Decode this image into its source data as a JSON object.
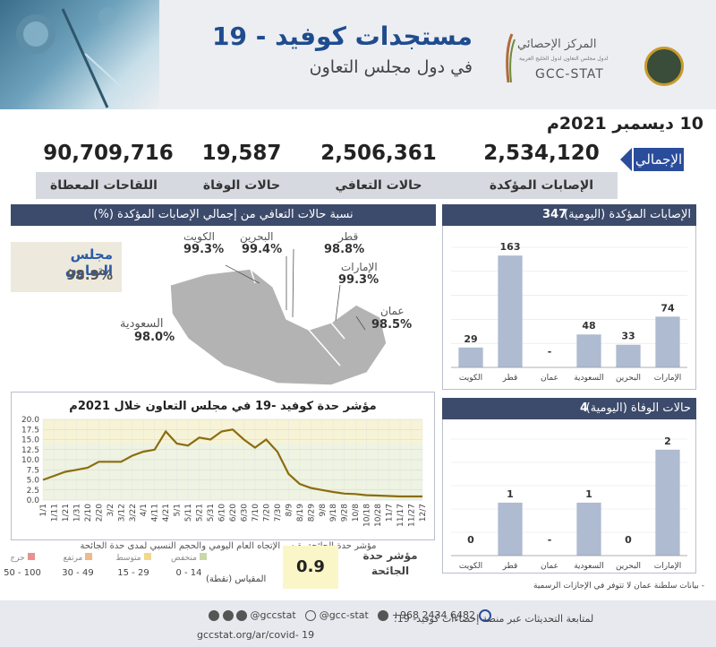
{
  "header": {
    "title": "مستجدات كوفيد - 19",
    "subtitle": "في دول مجلس التعاون",
    "org_ar": "المركز الإحصائي",
    "org_sub": "لدول مجلس التعاون لدول الخليج العربية",
    "org_en": "GCC-STAT"
  },
  "date": "10 ديسمبر 2021م",
  "totals": {
    "label": "الإجمالي",
    "items": [
      {
        "label": "الإصابات المؤكدة",
        "value": "2,534,120"
      },
      {
        "label": "حالات التعافي",
        "value": "2,506,361"
      },
      {
        "label": "حالات الوفاة",
        "value": "19,587"
      },
      {
        "label": "اللقاحات المعطاة",
        "value": "90,709,716"
      }
    ]
  },
  "recovery_map": {
    "title": "نسبة حالات التعافي من إجمالي الإصابات المؤكدة (%)",
    "gcc_label": "مجلس التعاون",
    "gcc_value": "98.9%",
    "countries": [
      {
        "name": "الكويت",
        "value": "99.3%"
      },
      {
        "name": "البحرين",
        "value": "99.4%"
      },
      {
        "name": "قطر",
        "value": "98.8%"
      },
      {
        "name": "الإمارات",
        "value": "99.3%"
      },
      {
        "name": "عمان",
        "value": "98.5%"
      },
      {
        "name": "السعودية",
        "value": "98.0%"
      }
    ]
  },
  "severity": {
    "title": "مؤشر حدة كوفيد -19 في مجلس التعاون خلال 2021م",
    "caption": "مؤشر حدة الجائحة يقيس الإتجاه العام اليومي والحجم النسبي لمدى حدة الجائحة",
    "index_label": "مؤشر حدة الجائحة",
    "index_value": "0.9",
    "scale_label": "المقياس (نقطة)",
    "scale": [
      {
        "label": "منخفض",
        "range": "0 - 14",
        "color": "#c7d9a6"
      },
      {
        "label": "متوسط",
        "range": "15 - 29",
        "color": "#f2d98a"
      },
      {
        "label": "مرتفع",
        "range": "30 - 49",
        "color": "#f0b98a"
      },
      {
        "label": "حرج",
        "range": "50 - 100",
        "color": "#e8928f"
      }
    ]
  },
  "daily_cases": {
    "title": "الإصابات المؤكدة (اليومية)",
    "total": "347"
  },
  "daily_deaths": {
    "title": "حالات الوفاة (اليومية)",
    "total": "4"
  },
  "note": "- بيانات سلطنة عمان لا تتوفر في الإجازات الرسمية",
  "footer": {
    "line1": "لمتابعة التحديثات عبر منصة إحصاءات كوفيد- 19:",
    "url": "gccstat.org/ar/covid- 19",
    "phone": "+968 2434 6482",
    "handle1": "@gcc-stat",
    "handle2": "@gccstat"
  },
  "chart_data": [
    {
      "type": "line",
      "title": "مؤشر حدة كوفيد -19 في مجلس التعاون خلال 2021م",
      "ylim": [
        0,
        20
      ],
      "yticks": [
        0.0,
        2.5,
        5.0,
        7.5,
        10.0,
        12.5,
        15.0,
        17.5,
        20.0
      ],
      "grid": true,
      "x": [
        "1/1",
        "1/11",
        "1/21",
        "1/31",
        "2/10",
        "2/20",
        "3/2",
        "3/12",
        "3/22",
        "4/1",
        "4/11",
        "4/21",
        "5/1",
        "5/11",
        "5/21",
        "5/31",
        "6/10",
        "6/20",
        "6/30",
        "7/10",
        "7/20",
        "7/30",
        "8/9",
        "8/19",
        "8/29",
        "9/8",
        "9/18",
        "9/28",
        "10/8",
        "10/18",
        "10/28",
        "11/7",
        "11/17",
        "11/27",
        "12/7"
      ],
      "series": [
        {
          "values": [
            5.0,
            6.0,
            7.0,
            7.5,
            8.0,
            9.5,
            9.5,
            9.5,
            11.0,
            12.0,
            12.5,
            17.0,
            14.0,
            13.5,
            15.5,
            15.0,
            17.0,
            17.5,
            15.0,
            13.0,
            15.0,
            12.0,
            6.5,
            4.0,
            3.0,
            2.5,
            2.0,
            1.6,
            1.5,
            1.2,
            1.1,
            1.0,
            0.9,
            0.9,
            0.9
          ]
        }
      ]
    },
    {
      "type": "bar",
      "title": "الإصابات المؤكدة (اليومية)",
      "categories": [
        "الكويت",
        "قطر",
        "عمان",
        "السعودية",
        "البحرين",
        "الإمارات"
      ],
      "values": [
        29,
        163,
        null,
        48,
        33,
        74
      ],
      "labels": [
        "29",
        "163",
        "-",
        "48",
        "33",
        "74"
      ]
    },
    {
      "type": "bar",
      "title": "حالات الوفاة (اليومية)",
      "categories": [
        "الكويت",
        "قطر",
        "عمان",
        "السعودية",
        "البحرين",
        "الإمارات"
      ],
      "values": [
        0,
        1,
        null,
        1,
        0,
        2
      ],
      "labels": [
        "0",
        "1",
        "-",
        "1",
        "0",
        "2"
      ]
    }
  ]
}
